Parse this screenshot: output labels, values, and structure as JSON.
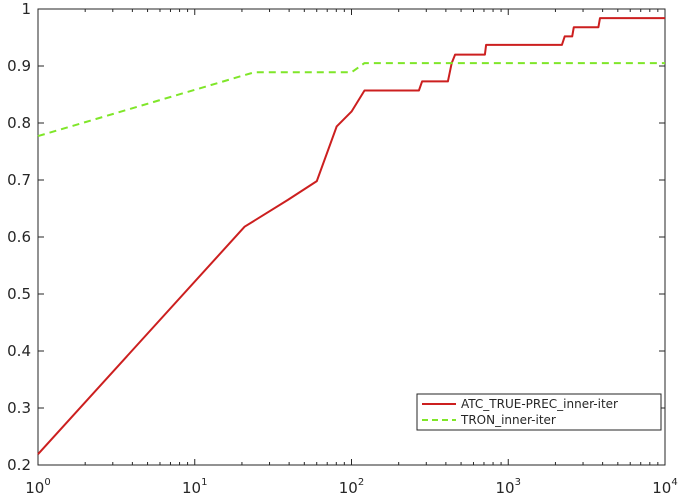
{
  "chart_data": {
    "type": "line",
    "xscale": "log",
    "xlim": [
      1,
      10000
    ],
    "ylim": [
      0.2,
      1
    ],
    "grid": false,
    "legend_position": "bottom-right",
    "xticks": [
      {
        "base": "10",
        "exp": "0"
      },
      {
        "base": "10",
        "exp": "1"
      },
      {
        "base": "10",
        "exp": "2"
      },
      {
        "base": "10",
        "exp": "3"
      },
      {
        "base": "10",
        "exp": "4"
      }
    ],
    "xtick_values": [
      1,
      10,
      100,
      1000,
      10000
    ],
    "yticks": [
      "0.2",
      "0.3",
      "0.4",
      "0.5",
      "0.6",
      "0.7",
      "0.8",
      "0.9",
      "1"
    ],
    "ytick_values": [
      0.2,
      0.3,
      0.4,
      0.5,
      0.6,
      0.7,
      0.8,
      0.9,
      1.0
    ],
    "series": [
      {
        "name": "ATC_TRUE-PREC_inner-iter",
        "color": "#cc1f1f",
        "style": "solid",
        "x": [
          1,
          20.8,
          39.3,
          60.1,
          80.5,
          100,
          121,
          165,
          269,
          282,
          412,
          436,
          458,
          531,
          710,
          722,
          2200,
          2290,
          2560,
          2620,
          3760,
          3850,
          10000
        ],
        "y": [
          0.219,
          0.618,
          0.665,
          0.698,
          0.794,
          0.82,
          0.857,
          0.857,
          0.857,
          0.873,
          0.873,
          0.905,
          0.92,
          0.92,
          0.92,
          0.937,
          0.937,
          0.952,
          0.952,
          0.968,
          0.968,
          0.984,
          0.984
        ]
      },
      {
        "name": "TRON_inner-iter",
        "color": "#7fe629",
        "style": "dashed",
        "x": [
          1,
          20.8,
          24,
          100,
          121,
          10000
        ],
        "y": [
          0.777,
          0.884,
          0.889,
          0.889,
          0.905,
          0.905
        ]
      }
    ]
  }
}
